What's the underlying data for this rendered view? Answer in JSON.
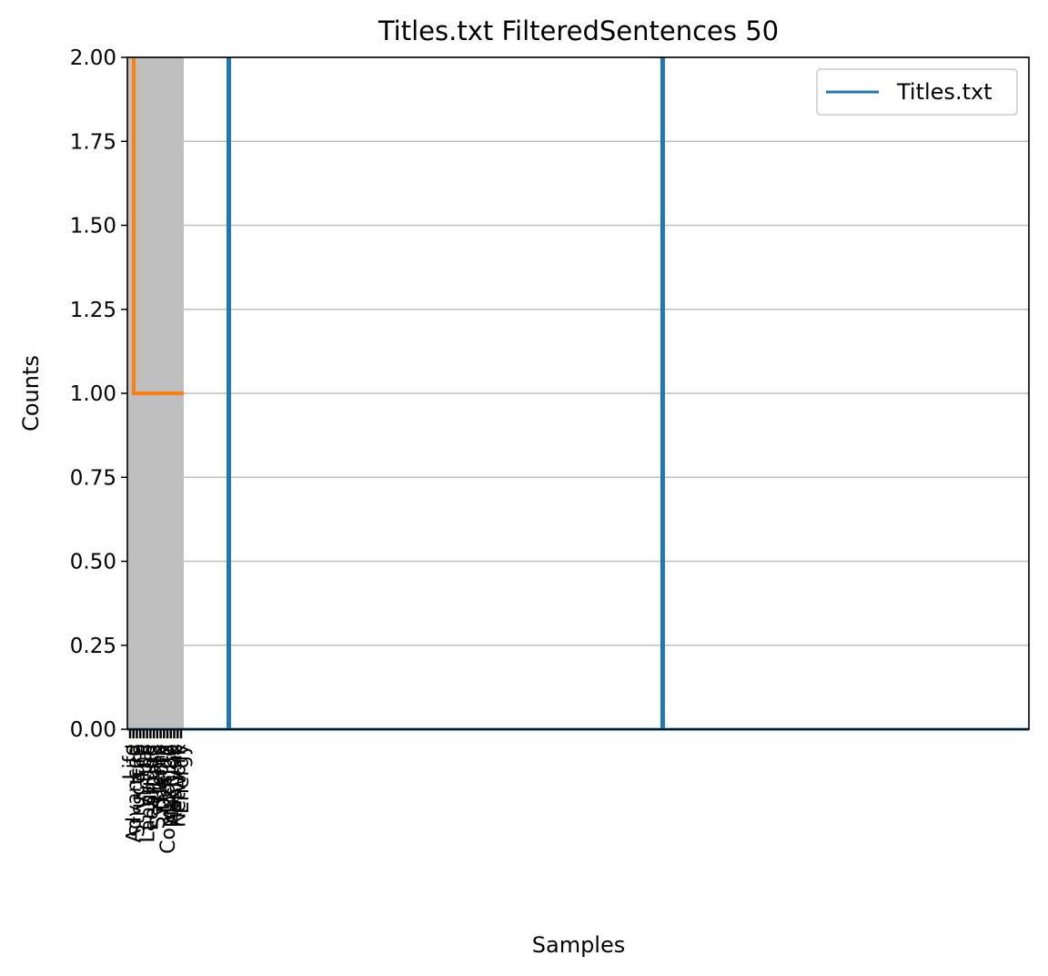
{
  "chart_data": {
    "type": "line",
    "title": "Titles.txt FilteredSentences 50",
    "xlabel": "Samples",
    "ylabel": "Counts",
    "ylim": [
      0,
      2
    ],
    "yticks": [
      "0.00",
      "0.25",
      "0.50",
      "0.75",
      "1.00",
      "1.25",
      "1.50",
      "1.75",
      "2.00"
    ],
    "grid": "horizontal",
    "legend": {
      "position": "top-right",
      "entries": [
        "Titles.txt"
      ]
    },
    "colors": {
      "series": "#1f77b4",
      "overlay": "#ff7f0e",
      "band": "#bfbfbf",
      "grid": "#bfbfbf"
    },
    "x_categories": [
      "Life",
      "Advanced",
      "Structure",
      "The",
      "Virtual",
      "Language",
      "Learning",
      "Data",
      "Systems",
      "Theory",
      "Design",
      "Computing",
      "Machine",
      "Analysis",
      "Network",
      "Energy"
    ],
    "x_range": [
      0,
      16
    ],
    "vertical_series_lines_at_x": [
      1.8,
      9.5
    ],
    "series": [
      {
        "name": "Titles.txt",
        "values": []
      },
      {
        "values": [
          2,
          1,
          1,
          1,
          1,
          1,
          1,
          1,
          1,
          1,
          1,
          1,
          1,
          1,
          1,
          1
        ]
      }
    ]
  }
}
